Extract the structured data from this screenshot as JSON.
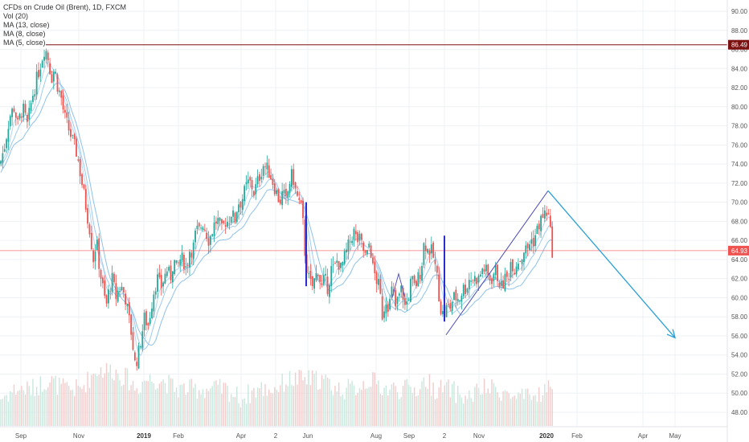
{
  "chart_data": {
    "type": "candlestick",
    "title": "CFDs on Crude Oil (Brent), 1D, FXCM",
    "indicators": [
      "Vol (20)",
      "MA (13, close)",
      "MA (8, close)",
      "MA (5, close)"
    ],
    "y_ticks": [
      "90.00",
      "88.00",
      "86.00",
      "84.00",
      "82.00",
      "80.00",
      "78.00",
      "76.00",
      "74.00",
      "72.00",
      "70.00",
      "68.00",
      "66.00",
      "64.00",
      "62.00",
      "60.00",
      "58.00",
      "56.00",
      "54.00",
      "52.00",
      "50.00",
      "48.00"
    ],
    "y_values": [
      90,
      88,
      86,
      84,
      82,
      80,
      78,
      76,
      74,
      72,
      70,
      68,
      66,
      64,
      62,
      60,
      58,
      56,
      54,
      52,
      50,
      48
    ],
    "ylim": [
      46.5,
      91.2
    ],
    "x_ticks": [
      {
        "label": "Sep",
        "bold": false
      },
      {
        "label": "Nov",
        "bold": false
      },
      {
        "label": "2019",
        "bold": true
      },
      {
        "label": "Feb",
        "bold": false
      },
      {
        "label": "Apr",
        "bold": false
      },
      {
        "label": "2",
        "bold": false
      },
      {
        "label": "Jun",
        "bold": false
      },
      {
        "label": "Aug",
        "bold": false
      },
      {
        "label": "Sep",
        "bold": false
      },
      {
        "label": "2",
        "bold": false
      },
      {
        "label": "Nov",
        "bold": false
      },
      {
        "label": "2020",
        "bold": true
      },
      {
        "label": "Feb",
        "bold": false
      },
      {
        "label": "Apr",
        "bold": false
      },
      {
        "label": "May",
        "bold": false
      }
    ],
    "resistance_level": {
      "value": 86.49,
      "label": "86.49",
      "color": "#7b1010"
    },
    "current_price": {
      "value": 64.93,
      "label": "64.93",
      "color": "#ef5350"
    },
    "price_path": [
      [
        0,
        74
      ],
      [
        6,
        76
      ],
      [
        12,
        79
      ],
      [
        18,
        80
      ],
      [
        22,
        78
      ],
      [
        28,
        80
      ],
      [
        34,
        78
      ],
      [
        40,
        81
      ],
      [
        46,
        83
      ],
      [
        52,
        85
      ],
      [
        56,
        86.3
      ],
      [
        60,
        85
      ],
      [
        64,
        83
      ],
      [
        68,
        84
      ],
      [
        72,
        82
      ],
      [
        76,
        81
      ],
      [
        80,
        79
      ],
      [
        84,
        78
      ],
      [
        88,
        77
      ],
      [
        92,
        76
      ],
      [
        96,
        75
      ],
      [
        100,
        73
      ],
      [
        104,
        71
      ],
      [
        108,
        69
      ],
      [
        112,
        67
      ],
      [
        116,
        64
      ],
      [
        120,
        66
      ],
      [
        124,
        63
      ],
      [
        128,
        61
      ],
      [
        132,
        59
      ],
      [
        136,
        61
      ],
      [
        140,
        62
      ],
      [
        144,
        60
      ],
      [
        148,
        61
      ],
      [
        152,
        61
      ],
      [
        156,
        60
      ],
      [
        160,
        58
      ],
      [
        164,
        56
      ],
      [
        168,
        53
      ],
      [
        172,
        54
      ],
      [
        176,
        56
      ],
      [
        180,
        58
      ],
      [
        184,
        57
      ],
      [
        188,
        59
      ],
      [
        192,
        61
      ],
      [
        196,
        62
      ],
      [
        200,
        61
      ],
      [
        204,
        62
      ],
      [
        208,
        63
      ],
      [
        212,
        62
      ],
      [
        216,
        64
      ],
      [
        220,
        63
      ],
      [
        224,
        64
      ],
      [
        228,
        64
      ],
      [
        232,
        63
      ],
      [
        236,
        65
      ],
      [
        240,
        65
      ],
      [
        244,
        67
      ],
      [
        248,
        67
      ],
      [
        252,
        68
      ],
      [
        256,
        67
      ],
      [
        260,
        66
      ],
      [
        264,
        67
      ],
      [
        268,
        68
      ],
      [
        272,
        68
      ],
      [
        276,
        67
      ],
      [
        280,
        68
      ],
      [
        284,
        68
      ],
      [
        288,
        69
      ],
      [
        292,
        68
      ],
      [
        296,
        70
      ],
      [
        300,
        70
      ],
      [
        304,
        71
      ],
      [
        308,
        72
      ],
      [
        312,
        72
      ],
      [
        316,
        71
      ],
      [
        320,
        72
      ],
      [
        324,
        73
      ],
      [
        328,
        74
      ],
      [
        332,
        73.5
      ],
      [
        336,
        73
      ],
      [
        340,
        72
      ],
      [
        344,
        71
      ],
      [
        348,
        70
      ],
      [
        352,
        71
      ],
      [
        356,
        70
      ],
      [
        360,
        72
      ],
      [
        364,
        73
      ],
      [
        368,
        71
      ],
      [
        372,
        70
      ],
      [
        376,
        69
      ],
      [
        380,
        64
      ],
      [
        384,
        62
      ],
      [
        388,
        61
      ],
      [
        392,
        62
      ],
      [
        396,
        63
      ],
      [
        400,
        61
      ],
      [
        404,
        62
      ],
      [
        408,
        61
      ],
      [
        412,
        63
      ],
      [
        416,
        63
      ],
      [
        420,
        64
      ],
      [
        424,
        63
      ],
      [
        428,
        64
      ],
      [
        432,
        65
      ],
      [
        436,
        66
      ],
      [
        440,
        67
      ],
      [
        444,
        66
      ],
      [
        448,
        66
      ],
      [
        452,
        65
      ],
      [
        456,
        64
      ],
      [
        460,
        66
      ],
      [
        464,
        63
      ],
      [
        468,
        62
      ],
      [
        472,
        61
      ],
      [
        476,
        58
      ],
      [
        480,
        60
      ],
      [
        484,
        59
      ],
      [
        488,
        61
      ],
      [
        492,
        59
      ],
      [
        496,
        60
      ],
      [
        500,
        61
      ],
      [
        504,
        59
      ],
      [
        508,
        60
      ],
      [
        512,
        62
      ],
      [
        516,
        61
      ],
      [
        520,
        62
      ],
      [
        524,
        63
      ],
      [
        528,
        66
      ],
      [
        532,
        65
      ],
      [
        536,
        65
      ],
      [
        540,
        64
      ],
      [
        544,
        62
      ],
      [
        548,
        59
      ],
      [
        552,
        58
      ],
      [
        556,
        59
      ],
      [
        560,
        59
      ],
      [
        564,
        60
      ],
      [
        568,
        60
      ],
      [
        572,
        60
      ],
      [
        576,
        61
      ],
      [
        580,
        61
      ],
      [
        584,
        62
      ],
      [
        588,
        62
      ],
      [
        592,
        62
      ],
      [
        596,
        62
      ],
      [
        600,
        63
      ],
      [
        604,
        63
      ],
      [
        608,
        62
      ],
      [
        612,
        62
      ],
      [
        616,
        63
      ],
      [
        620,
        62
      ],
      [
        624,
        61
      ],
      [
        628,
        62
      ],
      [
        632,
        62
      ],
      [
        636,
        64
      ],
      [
        640,
        63
      ],
      [
        644,
        64
      ],
      [
        648,
        64
      ],
      [
        652,
        65
      ],
      [
        656,
        65
      ],
      [
        660,
        66
      ],
      [
        664,
        66
      ],
      [
        668,
        67
      ],
      [
        672,
        68
      ],
      [
        676,
        68.5
      ],
      [
        680,
        69
      ],
      [
        684,
        68
      ],
      [
        686,
        65
      ],
      [
        688,
        64.9
      ]
    ],
    "volume_peaks": [
      [
        0,
        49
      ],
      [
        20,
        50
      ],
      [
        40,
        50
      ],
      [
        60,
        51
      ],
      [
        80,
        50
      ],
      [
        100,
        50
      ],
      [
        120,
        52
      ],
      [
        140,
        52
      ],
      [
        160,
        51
      ],
      [
        170,
        50
      ],
      [
        180,
        51
      ],
      [
        200,
        51
      ],
      [
        220,
        50
      ],
      [
        240,
        50
      ],
      [
        260,
        50
      ],
      [
        280,
        50
      ],
      [
        300,
        49
      ],
      [
        320,
        50
      ],
      [
        340,
        50
      ],
      [
        360,
        51
      ],
      [
        380,
        51
      ],
      [
        400,
        51
      ],
      [
        420,
        50
      ],
      [
        440,
        50
      ],
      [
        460,
        51
      ],
      [
        480,
        50
      ],
      [
        500,
        50
      ],
      [
        520,
        50
      ],
      [
        530,
        51
      ],
      [
        540,
        50
      ],
      [
        560,
        50
      ],
      [
        580,
        49
      ],
      [
        600,
        50
      ],
      [
        620,
        50
      ],
      [
        640,
        49
      ],
      [
        660,
        49
      ],
      [
        680,
        50
      ]
    ],
    "drawings": [
      {
        "type": "bar-marker",
        "x": 381,
        "y1": 70,
        "y2": 61.2,
        "color": "#2b2bd6"
      },
      {
        "type": "bar-marker",
        "x": 553,
        "y1": 66.5,
        "y2": 57.5,
        "color": "#2b2bd6"
      },
      {
        "type": "trend-line",
        "x1": 555,
        "y1": 56.1,
        "x2": 682,
        "y2": 71.2,
        "color": "#4a4ab5"
      },
      {
        "type": "arrow",
        "x1": 682,
        "y1": 71.2,
        "x2": 840,
        "y2": 55.8,
        "color": "#2a9fd6"
      }
    ]
  }
}
